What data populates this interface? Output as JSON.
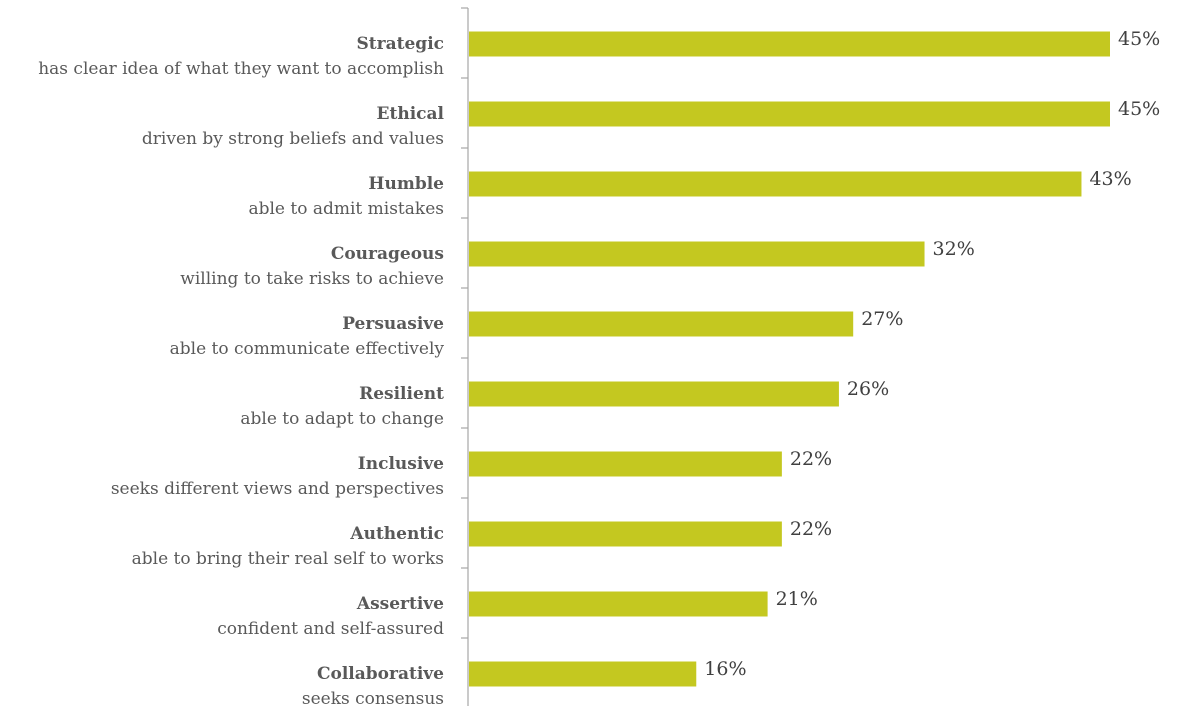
{
  "chart_data": {
    "type": "bar",
    "orientation": "horizontal",
    "categories": [
      {
        "title": "Strategic",
        "subtitle": "has clear idea of what they want to accomplish"
      },
      {
        "title": "Ethical",
        "subtitle": "driven by strong beliefs and values"
      },
      {
        "title": "Humble",
        "subtitle": "able to admit mistakes"
      },
      {
        "title": "Courageous",
        "subtitle": "willing to take risks to achieve"
      },
      {
        "title": "Persuasive",
        "subtitle": "able to communicate effectively"
      },
      {
        "title": "Resilient",
        "subtitle": "able to adapt to change"
      },
      {
        "title": "Inclusive",
        "subtitle": "seeks different views and perspectives"
      },
      {
        "title": "Authentic",
        "subtitle": "able to bring their real self to works"
      },
      {
        "title": "Assertive",
        "subtitle": "confident and self-assured"
      },
      {
        "title": "Collaborative",
        "subtitle": "seeks consensus"
      }
    ],
    "values": [
      45,
      45,
      43,
      32,
      27,
      26,
      22,
      22,
      21,
      16
    ],
    "value_labels": [
      "45%",
      "45%",
      "43%",
      "32%",
      "27%",
      "26%",
      "22%",
      "22%",
      "21%",
      "16%"
    ],
    "xlim": [
      0,
      45
    ],
    "grid": false,
    "bar_color": "#c4c820",
    "axis_color": "#a6a6a6",
    "label_color": "#595959"
  }
}
